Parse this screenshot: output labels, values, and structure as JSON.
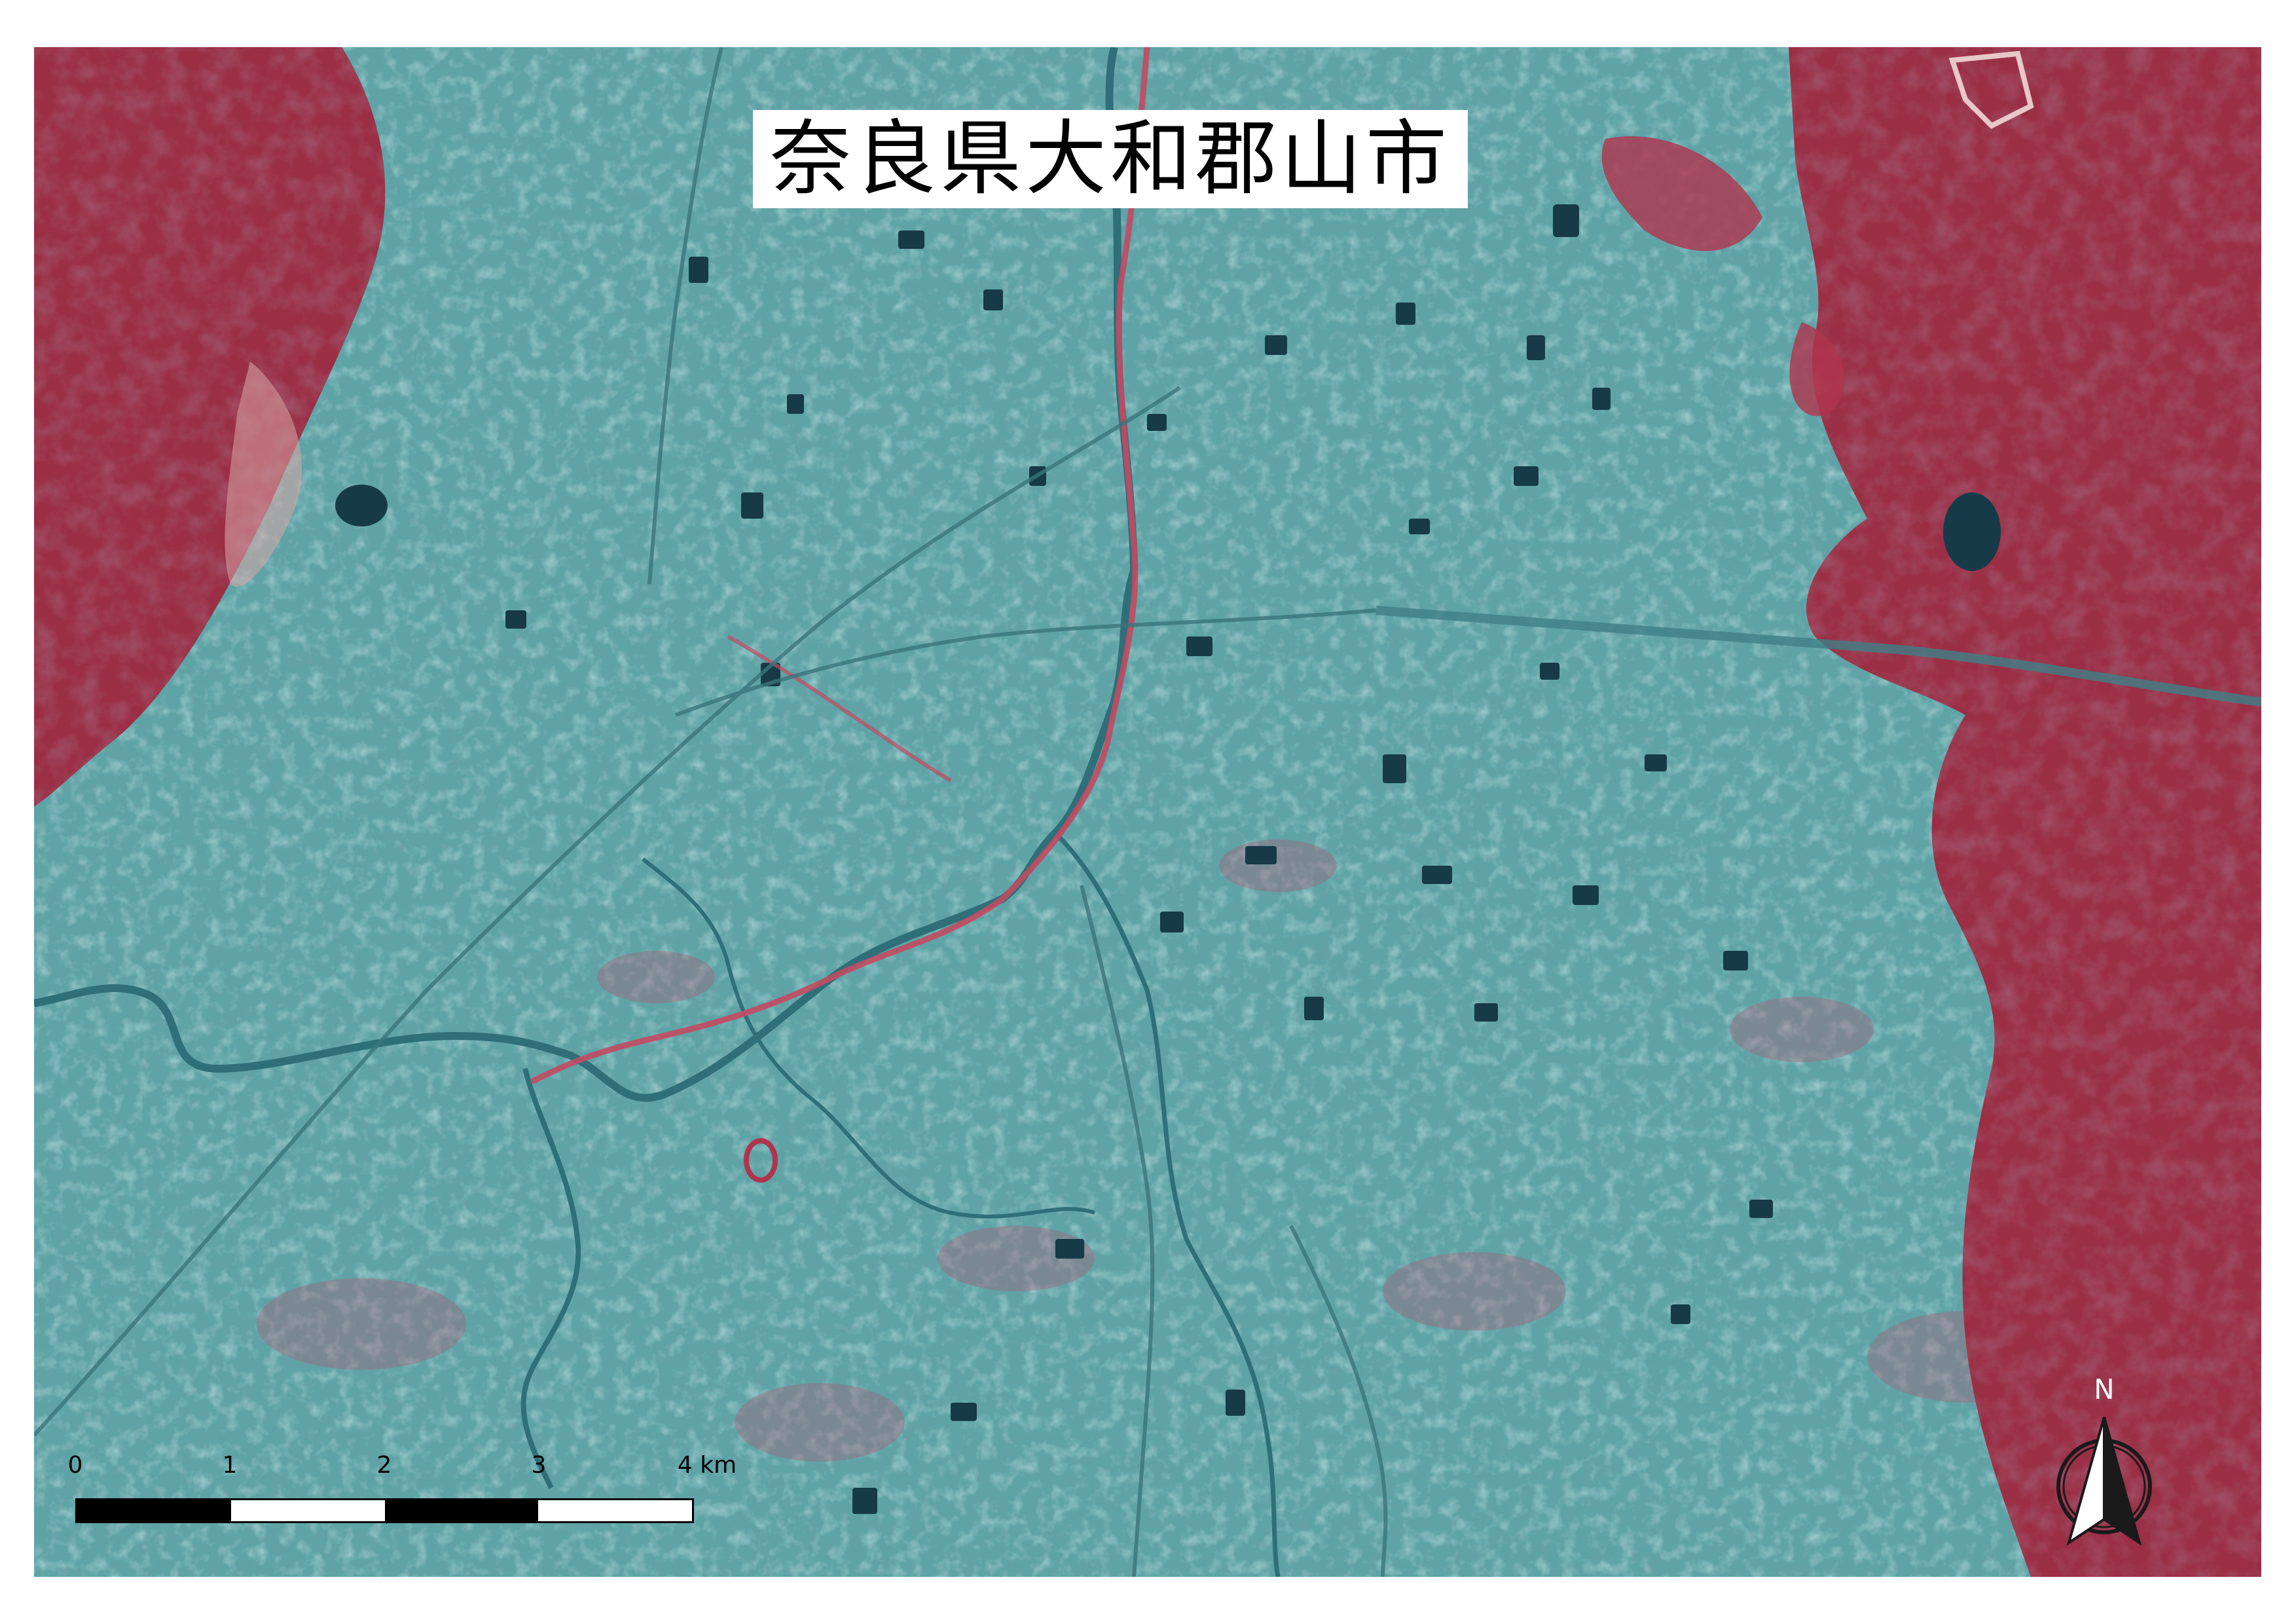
{
  "title": "奈良県大和郡山市",
  "scale_bar": {
    "labels": [
      "0",
      "1",
      "2",
      "3",
      "4 km"
    ],
    "unit": "km",
    "max_value": 4,
    "segments": [
      "dark",
      "light",
      "dark",
      "light"
    ]
  },
  "north_arrow": {
    "label": "N"
  },
  "colors": {
    "urban": "#5fa3a6",
    "vegetation": "#b0344e",
    "forest": "#8e2a40",
    "water": "#163a48",
    "rail_road": "#c24a62",
    "background": "#ffffff"
  }
}
